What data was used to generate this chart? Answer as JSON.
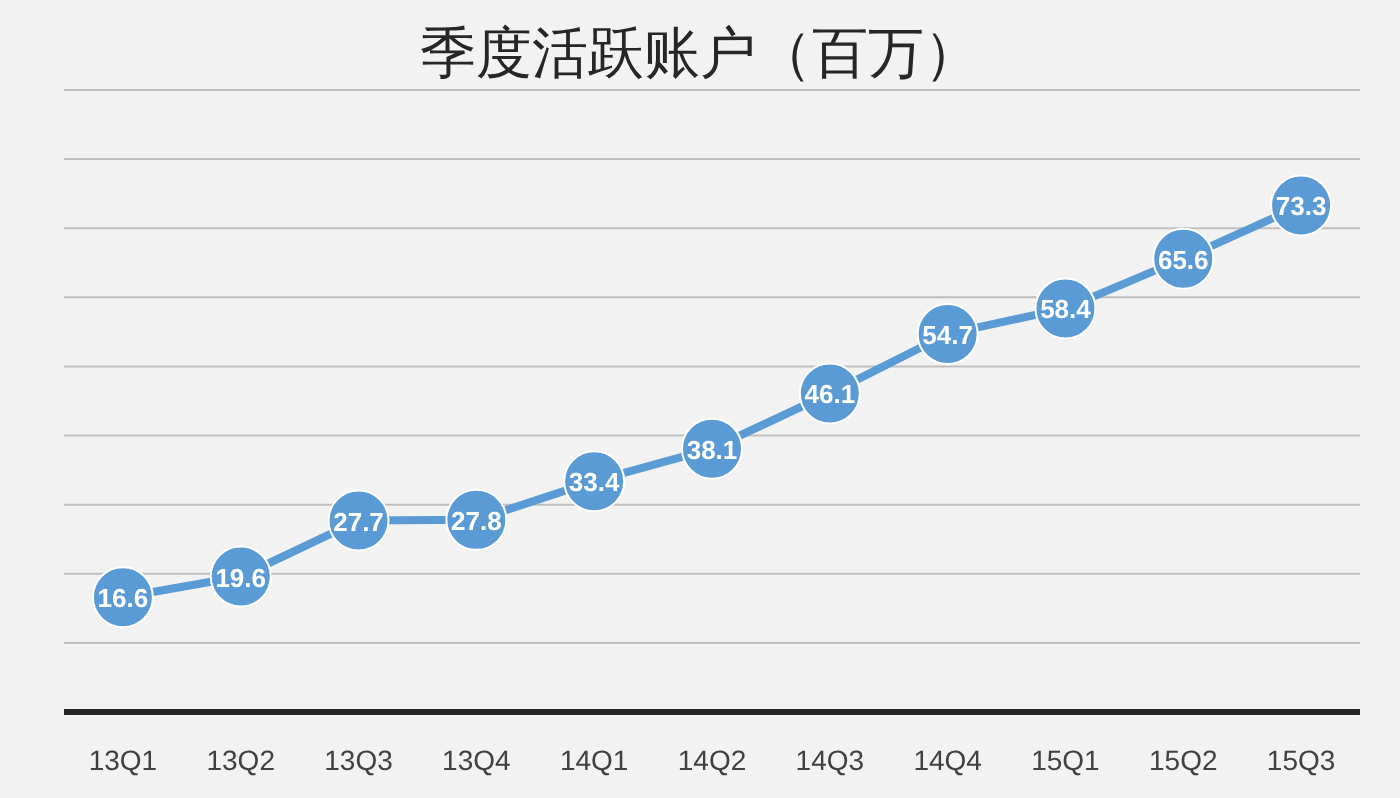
{
  "chart_data": {
    "type": "line",
    "title": "季度活跃账户（百万）",
    "categories": [
      "13Q1",
      "13Q2",
      "13Q3",
      "13Q4",
      "14Q1",
      "14Q2",
      "14Q3",
      "14Q4",
      "15Q1",
      "15Q2",
      "15Q3"
    ],
    "series": [
      {
        "color": "#5b9bd5",
        "values": [
          16.6,
          19.6,
          27.7,
          27.8,
          33.4,
          38.1,
          46.1,
          54.7,
          58.4,
          65.6,
          73.3
        ]
      }
    ],
    "ylim": [
      0,
      90
    ],
    "yticks": [
      {
        "value": 0,
        "label": null
      },
      {
        "value": 10,
        "label": null
      },
      {
        "value": 20,
        "label": null
      },
      {
        "value": 30,
        "label": null
      },
      {
        "value": 40,
        "label": null
      },
      {
        "value": 50,
        "label": null
      },
      {
        "value": 60,
        "label": null
      },
      {
        "value": 70,
        "label": null
      },
      {
        "value": 80,
        "label": null
      },
      {
        "value": 90,
        "label": null
      }
    ],
    "tick_labels": "x",
    "grid": "y",
    "marker": "circle",
    "line_style": "solid",
    "data_labels": true
  }
}
